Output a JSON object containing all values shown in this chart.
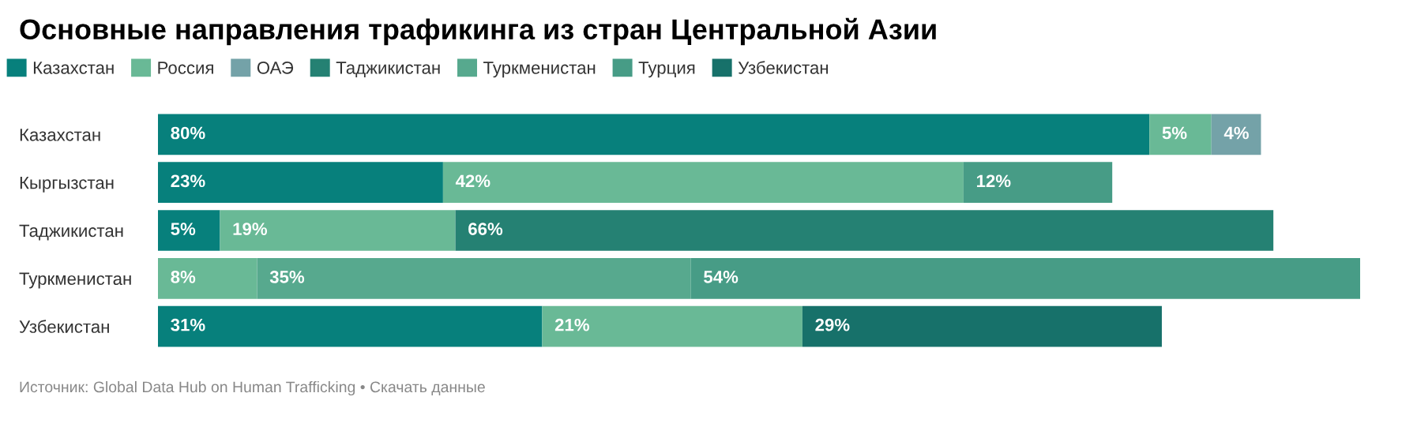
{
  "chart_data": {
    "type": "bar",
    "orientation": "horizontal",
    "stacked": true,
    "title": "Основные направления трафикинга из стран Центральной Азии",
    "categories": [
      "Казахстан",
      "Кыргызстан",
      "Таджикистан",
      "Туркменистан",
      "Узбекистан"
    ],
    "series": [
      {
        "name": "Казахстан",
        "color": "#07807c",
        "values": [
          80,
          23,
          5,
          null,
          31
        ],
        "value_labels": [
          "80%",
          "23%",
          "5%",
          null,
          "31%"
        ]
      },
      {
        "name": "Россия",
        "color": "#69b996",
        "values": [
          5,
          42,
          19,
          8,
          21
        ],
        "value_labels": [
          "5%",
          "42%",
          "19%",
          "8%",
          "21%"
        ]
      },
      {
        "name": "ОАЭ",
        "color": "#74a2a8",
        "values": [
          4,
          null,
          null,
          null,
          null
        ],
        "value_labels": [
          "4%",
          null,
          null,
          null,
          null
        ]
      },
      {
        "name": "Таджикистан",
        "color": "#258173",
        "values": [
          null,
          null,
          66,
          null,
          null
        ],
        "value_labels": [
          null,
          null,
          "66%",
          null,
          null
        ]
      },
      {
        "name": "Туркменистан",
        "color": "#57a98e",
        "values": [
          null,
          null,
          null,
          35,
          null
        ],
        "value_labels": [
          null,
          null,
          null,
          "35%",
          null
        ]
      },
      {
        "name": "Турция",
        "color": "#479c86",
        "values": [
          null,
          12,
          null,
          54,
          null
        ],
        "value_labels": [
          null,
          "12%",
          null,
          "54%",
          null
        ]
      },
      {
        "name": "Узбекистан",
        "color": "#17716a",
        "values": [
          null,
          null,
          null,
          null,
          29
        ],
        "value_labels": [
          null,
          null,
          null,
          null,
          "29%"
        ]
      }
    ],
    "tick_labels": "y",
    "grid": false,
    "legend": "top left",
    "annotations": [
      "Источник: Global Data Hub on Human Trafficking • Скачать данные"
    ]
  }
}
